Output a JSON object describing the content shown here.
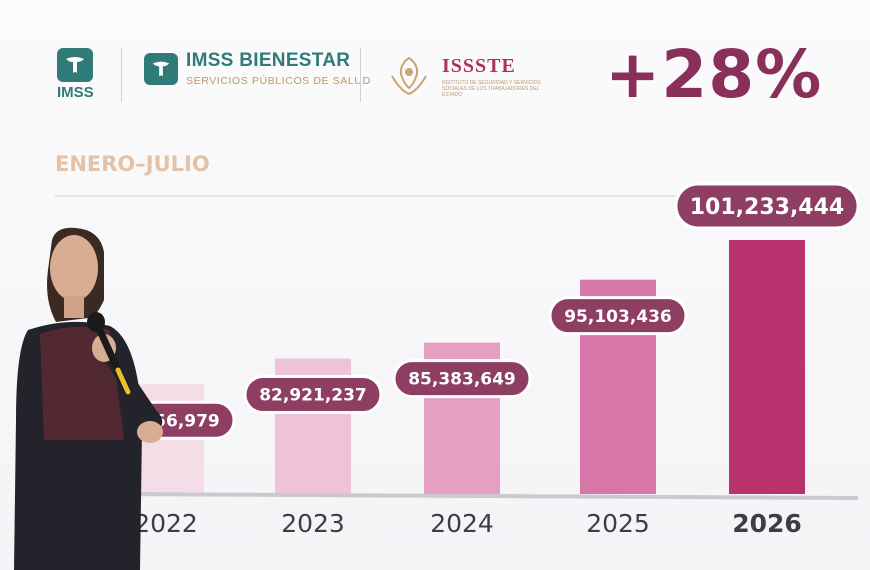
{
  "header": {
    "imss_label": "IMSS",
    "bienestar_title": "IMSS BIENESTAR",
    "bienestar_subtitle": "SERVICIOS PÚBLICOS DE SALUD",
    "issste_title": "ISSSTE",
    "issste_subtitle": "INSTITUTO DE SEGURIDAD Y SERVICIOS SOCIALES DE LOS TRABAJADORES DEL ESTADO"
  },
  "highlight": "+28%",
  "period_label": "ENERO–JULIO",
  "colors": {
    "accent": "#8a2f5a",
    "bubble": "#8d3e62",
    "bars": [
      "#f5dde7",
      "#efc3d7",
      "#e59fc3",
      "#d776a9",
      "#b8336d"
    ]
  },
  "chart_data": {
    "type": "bar",
    "categories": [
      "2022",
      "2023",
      "2024",
      "2025",
      "2026"
    ],
    "values": [
      78956979,
      82921237,
      85383649,
      95103436,
      101233444
    ],
    "data_labels": [
      "78,956,979",
      "82,921,237",
      "85,383,649",
      "95,103,436",
      "101,233,444"
    ],
    "highlighted_category": "2026",
    "title": "ENERO–JULIO",
    "xlabel": "",
    "ylabel": "",
    "grid": false,
    "legend": "none"
  }
}
